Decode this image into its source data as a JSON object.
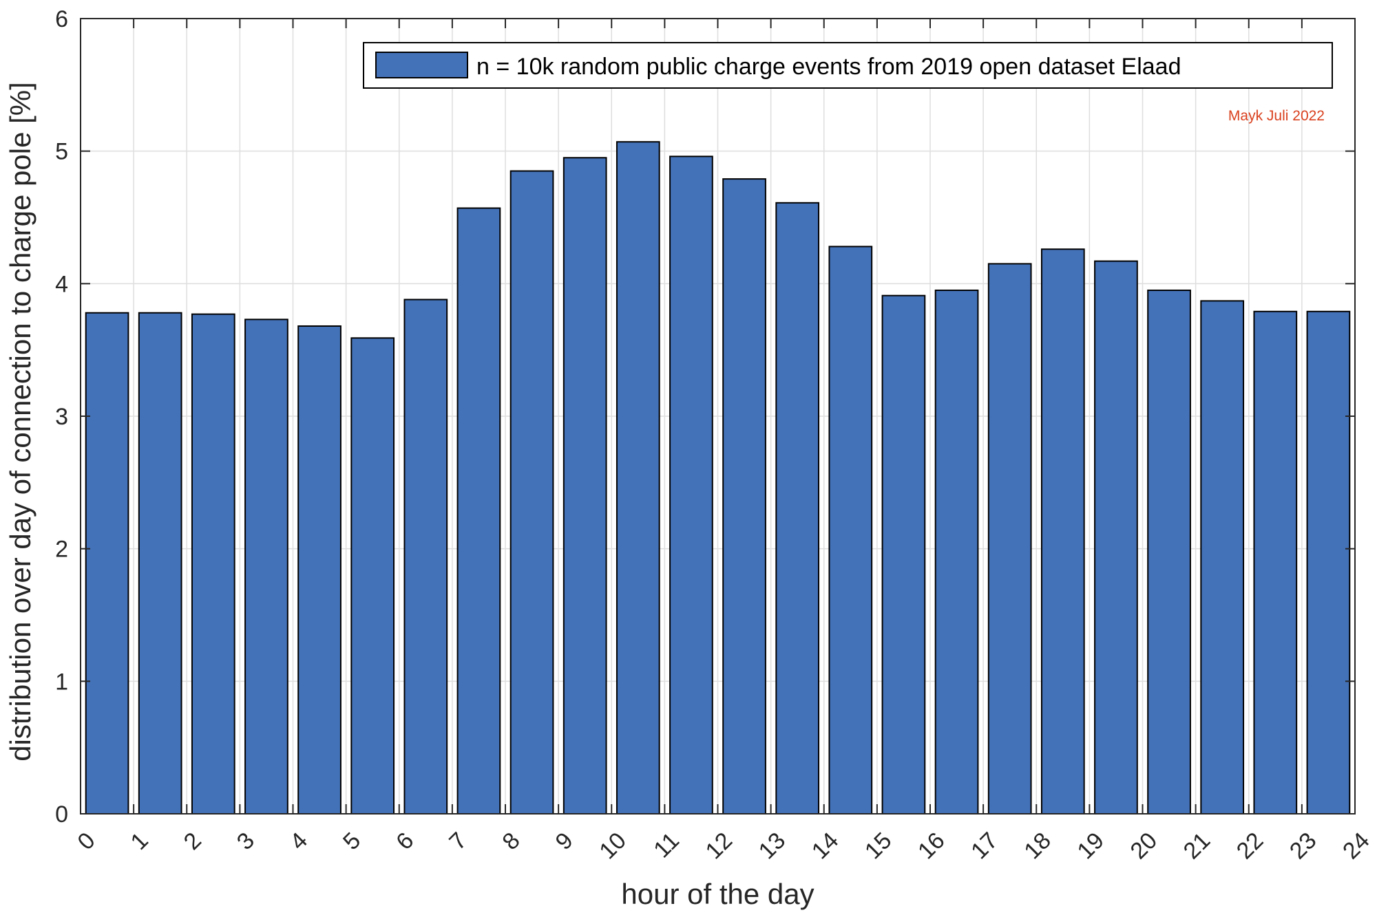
{
  "chart_data": {
    "type": "bar",
    "x": [
      0.5,
      1.5,
      2.5,
      3.5,
      4.5,
      5.5,
      6.5,
      7.5,
      8.5,
      9.5,
      10.5,
      11.5,
      12.5,
      13.5,
      14.5,
      15.5,
      16.5,
      17.5,
      18.5,
      19.5,
      20.5,
      21.5,
      22.5,
      23.5
    ],
    "values": [
      3.78,
      3.78,
      3.77,
      3.73,
      3.68,
      3.59,
      3.88,
      4.57,
      4.85,
      4.95,
      5.07,
      4.96,
      4.79,
      4.61,
      4.28,
      3.91,
      3.95,
      4.15,
      4.26,
      4.17,
      3.95,
      3.87,
      3.79,
      3.79
    ],
    "xlim": [
      0,
      24
    ],
    "ylim": [
      0,
      6
    ],
    "xticks": [
      0,
      1,
      2,
      3,
      4,
      5,
      6,
      7,
      8,
      9,
      10,
      11,
      12,
      13,
      14,
      15,
      16,
      17,
      18,
      19,
      20,
      21,
      22,
      23,
      24
    ],
    "yticks": [
      0,
      1,
      2,
      3,
      4,
      5,
      6
    ],
    "xlabel": "hour of the day",
    "ylabel": "distribution over day of connection to charge pole [%]",
    "grid": true,
    "legend": {
      "placement": "top-right",
      "entries": [
        "n = 10k random public charge events from 2019 open dataset Elaad"
      ]
    },
    "annotations": [
      {
        "text": "Mayk Juli 2022",
        "color": "#d9401e"
      }
    ],
    "colors": {
      "bar_fill": "#4472b8",
      "bar_edge": "#000000",
      "grid": "#dedede",
      "axis": "#262626"
    }
  }
}
